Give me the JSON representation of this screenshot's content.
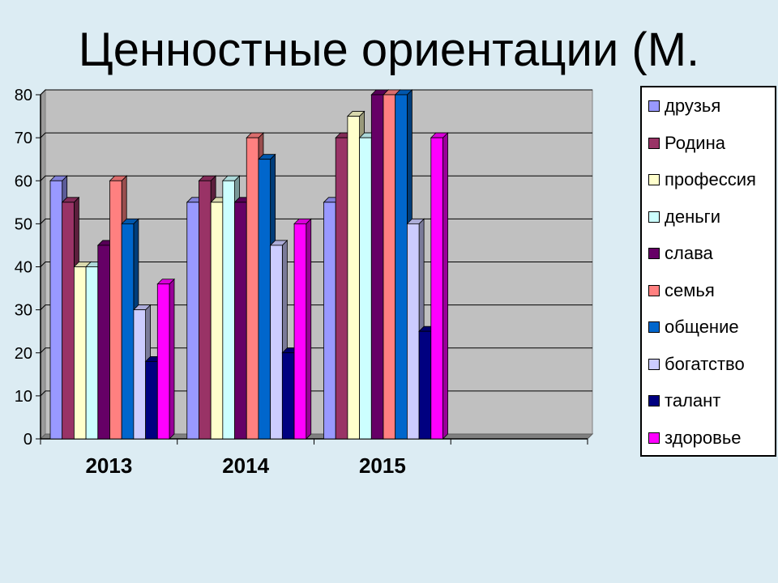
{
  "page": {
    "title": "Ценностные ориентации (М."
  },
  "colors": {
    "background": "#dcecf3",
    "plot_area": "#c0c0c0",
    "series": [
      "#9999ff",
      "#993366",
      "#ffffcc",
      "#ccffff",
      "#660066",
      "#ff8080",
      "#0066cc",
      "#ccccff",
      "#000080",
      "#ff00ff"
    ]
  },
  "chart_data": {
    "type": "bar",
    "title": "Ценностные ориентации (М.",
    "categories": [
      "2013",
      "2014",
      "2015"
    ],
    "category_slots": 4,
    "ylim": [
      0,
      80
    ],
    "yticks": [
      "0",
      "10",
      "20",
      "30",
      "40",
      "50",
      "60",
      "70",
      "80"
    ],
    "grid": true,
    "legend_position": "right",
    "series": [
      {
        "name": "друзья",
        "values": [
          60,
          55,
          55
        ]
      },
      {
        "name": "Родина",
        "values": [
          55,
          60,
          70
        ]
      },
      {
        "name": "профессия",
        "values": [
          40,
          55,
          75
        ]
      },
      {
        "name": "деньги",
        "values": [
          40,
          60,
          70
        ]
      },
      {
        "name": "слава",
        "values": [
          45,
          55,
          80
        ]
      },
      {
        "name": "семья",
        "values": [
          60,
          70,
          80
        ]
      },
      {
        "name": "общение",
        "values": [
          50,
          65,
          80
        ]
      },
      {
        "name": "богатство",
        "values": [
          30,
          45,
          50
        ]
      },
      {
        "name": "талант",
        "values": [
          18,
          20,
          25
        ]
      },
      {
        "name": "здоровье",
        "values": [
          36,
          50,
          70
        ]
      }
    ]
  }
}
